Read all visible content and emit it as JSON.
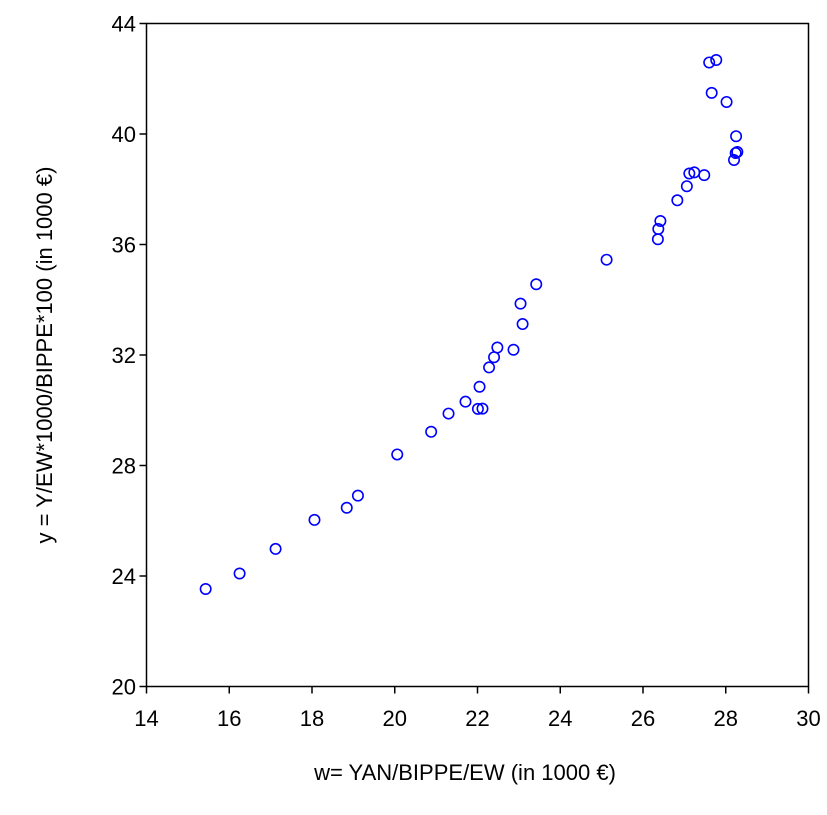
{
  "chart_data": {
    "type": "scatter",
    "title": "",
    "xlabel": "w= YAN/BIPPE/EW (in 1000 €)",
    "ylabel": "y = Y/EW*1000/BIPPE*100 (in 1000 €)",
    "xlim": [
      14,
      30
    ],
    "ylim": [
      20,
      44
    ],
    "xticks": [
      14,
      16,
      18,
      20,
      22,
      24,
      26,
      28,
      30
    ],
    "yticks": [
      20,
      24,
      28,
      32,
      36,
      40,
      44
    ],
    "grid": false,
    "marker": "open-circle",
    "marker_color": "#0000ff",
    "points": [
      {
        "x": 15.43,
        "y": 23.53
      },
      {
        "x": 16.25,
        "y": 24.09
      },
      {
        "x": 17.12,
        "y": 24.98
      },
      {
        "x": 18.06,
        "y": 26.03
      },
      {
        "x": 18.84,
        "y": 26.47
      },
      {
        "x": 19.11,
        "y": 26.91
      },
      {
        "x": 20.06,
        "y": 28.4
      },
      {
        "x": 20.88,
        "y": 29.22
      },
      {
        "x": 21.3,
        "y": 29.88
      },
      {
        "x": 21.71,
        "y": 30.31
      },
      {
        "x": 22.01,
        "y": 30.05
      },
      {
        "x": 22.12,
        "y": 30.06
      },
      {
        "x": 22.05,
        "y": 30.85
      },
      {
        "x": 22.28,
        "y": 31.55
      },
      {
        "x": 22.4,
        "y": 31.92
      },
      {
        "x": 22.48,
        "y": 32.27
      },
      {
        "x": 22.87,
        "y": 32.19
      },
      {
        "x": 23.04,
        "y": 33.86
      },
      {
        "x": 23.09,
        "y": 33.12
      },
      {
        "x": 23.42,
        "y": 34.56
      },
      {
        "x": 25.12,
        "y": 35.45
      },
      {
        "x": 26.36,
        "y": 36.19
      },
      {
        "x": 26.37,
        "y": 36.56
      },
      {
        "x": 26.42,
        "y": 36.85
      },
      {
        "x": 26.83,
        "y": 37.6
      },
      {
        "x": 27.06,
        "y": 38.11
      },
      {
        "x": 27.12,
        "y": 38.57
      },
      {
        "x": 27.24,
        "y": 38.61
      },
      {
        "x": 27.48,
        "y": 38.51
      },
      {
        "x": 27.6,
        "y": 42.59
      },
      {
        "x": 27.77,
        "y": 42.68
      },
      {
        "x": 27.66,
        "y": 41.49
      },
      {
        "x": 28.02,
        "y": 41.16
      },
      {
        "x": 28.2,
        "y": 39.06
      },
      {
        "x": 28.24,
        "y": 39.31
      },
      {
        "x": 28.28,
        "y": 39.35
      },
      {
        "x": 28.25,
        "y": 39.92
      }
    ]
  }
}
